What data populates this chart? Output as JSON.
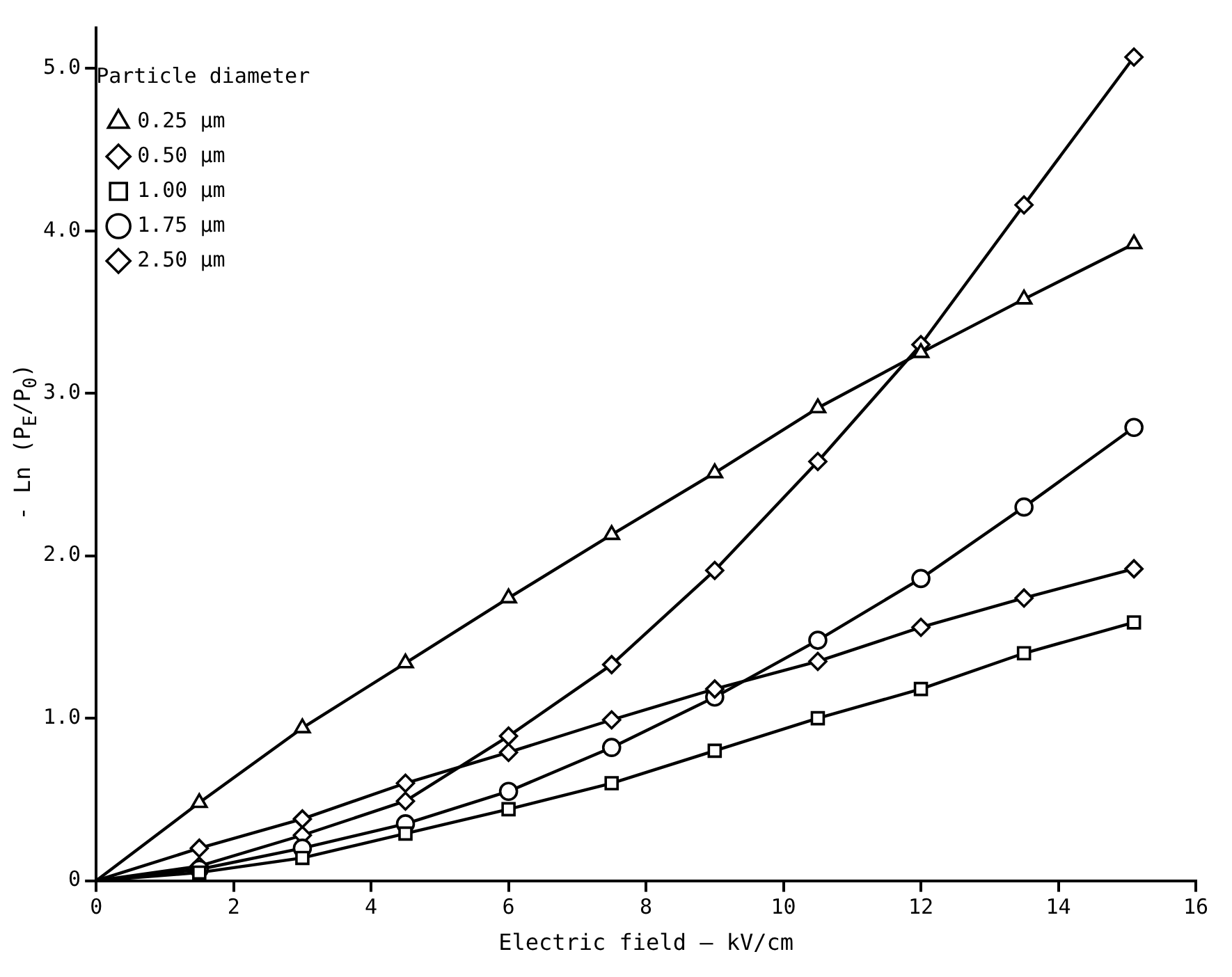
{
  "chart_data": {
    "type": "line",
    "xlabel": "Electric field — kV/cm",
    "ylabel": "- Ln (P$_{E}$/P$_{0}$)",
    "legend_title": "Particle diameter",
    "x": [
      0,
      1.5,
      3,
      4.5,
      6,
      7.5,
      9,
      10.5,
      12,
      13.5,
      15.1
    ],
    "series": [
      {
        "name": "0.25 µm",
        "color": "#000000",
        "marker": "triangle",
        "values": [
          0,
          0.48,
          0.94,
          1.34,
          1.74,
          2.13,
          2.51,
          2.91,
          3.25,
          3.58,
          3.92
        ]
      },
      {
        "name": "0.50 µm",
        "color": "#000000",
        "marker": "diamond",
        "values": [
          0,
          0.2,
          0.38,
          0.6,
          0.79,
          0.99,
          1.18,
          1.35,
          1.56,
          1.74,
          1.92
        ]
      },
      {
        "name": "1.00 µm",
        "color": "#000000",
        "marker": "square",
        "values": [
          0,
          0.05,
          0.14,
          0.29,
          0.44,
          0.6,
          0.8,
          1.0,
          1.18,
          1.4,
          1.59
        ]
      },
      {
        "name": "1.75 µm",
        "color": "#000000",
        "marker": "circle",
        "values": [
          0,
          0.07,
          0.2,
          0.35,
          0.55,
          0.82,
          1.13,
          1.48,
          1.86,
          2.3,
          2.79
        ]
      },
      {
        "name": "2.50 µm",
        "color": "#000000",
        "marker": "diamond",
        "values": [
          0,
          0.09,
          0.28,
          0.49,
          0.89,
          1.33,
          1.91,
          2.58,
          3.3,
          4.16,
          5.07
        ]
      }
    ],
    "xlim": [
      0,
      16
    ],
    "xticks": [
      0,
      2,
      4,
      6,
      8,
      10,
      12,
      14,
      16
    ],
    "ylim": [
      0,
      5.25
    ],
    "yticks": [
      0,
      {
        "value": 1,
        "label": "1.0"
      },
      {
        "value": 2,
        "label": "2.0"
      },
      {
        "value": 3,
        "label": "3.0"
      },
      {
        "value": 4,
        "label": "4.0"
      },
      {
        "value": 5,
        "label": "5.0"
      }
    ],
    "grid": false,
    "legend": "top left",
    "line_style": "solid"
  }
}
